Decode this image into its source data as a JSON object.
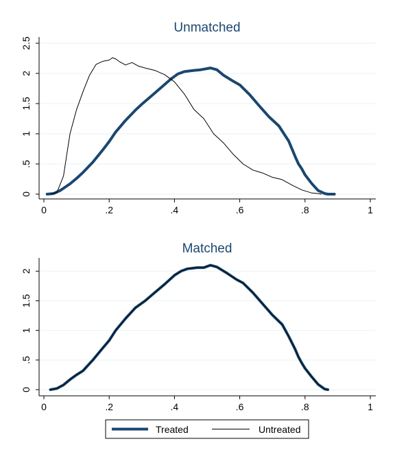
{
  "chart_data": [
    {
      "type": "line",
      "title": "Unmatched",
      "xlabel": "",
      "ylabel": "",
      "xlim": [
        0,
        1
      ],
      "ylim": [
        0,
        2.5
      ],
      "x_ticks": [
        {
          "value": 0,
          "label": "0"
        },
        {
          "value": 0.2,
          "label": ".2"
        },
        {
          "value": 0.4,
          "label": ".4"
        },
        {
          "value": 0.6,
          "label": ".6"
        },
        {
          "value": 0.8,
          "label": ".8"
        },
        {
          "value": 1,
          "label": "1"
        }
      ],
      "y_ticks": [
        {
          "value": 0,
          "label": "0"
        },
        {
          "value": 0.5,
          "label": ".5"
        },
        {
          "value": 1,
          "label": "1"
        },
        {
          "value": 1.5,
          "label": "1.5"
        },
        {
          "value": 2,
          "label": "2"
        },
        {
          "value": 2.5,
          "label": "2.5"
        }
      ],
      "grid": true,
      "series": [
        {
          "name": "Treated",
          "color": "#1a476f",
          "x": [
            0.01,
            0.03,
            0.05,
            0.08,
            0.1,
            0.12,
            0.15,
            0.18,
            0.2,
            0.22,
            0.25,
            0.28,
            0.3,
            0.33,
            0.36,
            0.39,
            0.41,
            0.43,
            0.46,
            0.48,
            0.5,
            0.51,
            0.53,
            0.55,
            0.58,
            0.6,
            0.63,
            0.66,
            0.69,
            0.72,
            0.75,
            0.77,
            0.78,
            0.79,
            0.8,
            0.82,
            0.84,
            0.86,
            0.87,
            0.89
          ],
          "y": [
            0,
            0.01,
            0.06,
            0.17,
            0.26,
            0.36,
            0.53,
            0.73,
            0.87,
            1.03,
            1.22,
            1.39,
            1.49,
            1.63,
            1.77,
            1.91,
            1.99,
            2.03,
            2.05,
            2.06,
            2.08,
            2.09,
            2.06,
            1.97,
            1.87,
            1.81,
            1.65,
            1.46,
            1.28,
            1.13,
            0.88,
            0.62,
            0.5,
            0.42,
            0.32,
            0.18,
            0.06,
            0.01,
            0,
            0
          ]
        },
        {
          "name": "Untreated",
          "color": "#000000",
          "x": [
            0.02,
            0.04,
            0.06,
            0.07,
            0.08,
            0.1,
            0.12,
            0.14,
            0.16,
            0.18,
            0.2,
            0.21,
            0.22,
            0.23,
            0.25,
            0.27,
            0.29,
            0.31,
            0.34,
            0.37,
            0.4,
            0.43,
            0.46,
            0.49,
            0.52,
            0.55,
            0.58,
            0.61,
            0.64,
            0.67,
            0.7,
            0.73,
            0.76,
            0.79,
            0.82,
            0.84,
            0.85
          ],
          "y": [
            0,
            0.03,
            0.3,
            0.65,
            1.0,
            1.4,
            1.7,
            1.97,
            2.15,
            2.2,
            2.22,
            2.26,
            2.24,
            2.2,
            2.14,
            2.18,
            2.12,
            2.09,
            2.05,
            1.98,
            1.86,
            1.66,
            1.4,
            1.25,
            1.0,
            0.85,
            0.66,
            0.5,
            0.4,
            0.35,
            0.28,
            0.24,
            0.15,
            0.07,
            0.02,
            0.01,
            0
          ]
        }
      ]
    },
    {
      "type": "line",
      "title": "Matched",
      "xlabel": "",
      "ylabel": "",
      "xlim": [
        0,
        1
      ],
      "ylim": [
        0,
        2.2
      ],
      "x_ticks": [
        {
          "value": 0,
          "label": "0"
        },
        {
          "value": 0.2,
          "label": ".2"
        },
        {
          "value": 0.4,
          "label": ".4"
        },
        {
          "value": 0.6,
          "label": ".6"
        },
        {
          "value": 0.8,
          "label": ".8"
        },
        {
          "value": 1,
          "label": "1"
        }
      ],
      "y_ticks": [
        {
          "value": 0,
          "label": "0"
        },
        {
          "value": 0.5,
          "label": ".5"
        },
        {
          "value": 1,
          "label": "1"
        },
        {
          "value": 1.5,
          "label": "1.5"
        },
        {
          "value": 2,
          "label": "2"
        }
      ],
      "grid": true,
      "series": [
        {
          "name": "Treated",
          "color": "#1a476f",
          "x": [
            0.02,
            0.04,
            0.06,
            0.08,
            0.1,
            0.12,
            0.15,
            0.18,
            0.2,
            0.22,
            0.25,
            0.28,
            0.31,
            0.34,
            0.37,
            0.4,
            0.42,
            0.44,
            0.47,
            0.49,
            0.51,
            0.53,
            0.56,
            0.59,
            0.61,
            0.64,
            0.67,
            0.7,
            0.73,
            0.75,
            0.77,
            0.78,
            0.79,
            0.8,
            0.82,
            0.84,
            0.86,
            0.87
          ],
          "y": [
            0,
            0.02,
            0.08,
            0.17,
            0.25,
            0.32,
            0.5,
            0.7,
            0.83,
            1.0,
            1.2,
            1.38,
            1.5,
            1.64,
            1.78,
            1.93,
            2.0,
            2.04,
            2.06,
            2.06,
            2.1,
            2.07,
            1.97,
            1.86,
            1.8,
            1.64,
            1.45,
            1.26,
            1.1,
            0.9,
            0.68,
            0.55,
            0.45,
            0.36,
            0.22,
            0.09,
            0.01,
            0
          ]
        },
        {
          "name": "Untreated",
          "color": "#000000",
          "x": [
            0.02,
            0.04,
            0.06,
            0.08,
            0.1,
            0.12,
            0.15,
            0.18,
            0.2,
            0.22,
            0.25,
            0.28,
            0.31,
            0.34,
            0.37,
            0.4,
            0.42,
            0.44,
            0.47,
            0.49,
            0.51,
            0.53,
            0.56,
            0.59,
            0.61,
            0.64,
            0.67,
            0.7,
            0.73,
            0.75,
            0.77,
            0.78,
            0.79,
            0.8,
            0.82,
            0.84,
            0.86,
            0.87
          ],
          "y": [
            0,
            0.02,
            0.08,
            0.17,
            0.25,
            0.32,
            0.5,
            0.7,
            0.83,
            1.0,
            1.2,
            1.38,
            1.5,
            1.64,
            1.78,
            1.93,
            2.0,
            2.04,
            2.06,
            2.06,
            2.1,
            2.07,
            1.97,
            1.86,
            1.8,
            1.64,
            1.45,
            1.26,
            1.1,
            0.9,
            0.68,
            0.55,
            0.45,
            0.36,
            0.22,
            0.09,
            0.01,
            0
          ]
        }
      ]
    }
  ],
  "legend": {
    "placement": "bottom-center",
    "items": [
      {
        "label": "Treated",
        "color": "#1a476f",
        "style": "thick"
      },
      {
        "label": "Untreated",
        "color": "#000000",
        "style": "thin"
      }
    ]
  },
  "colors": {
    "title": "#1a476f",
    "grid": "#eaf2f3",
    "axis": "#000000"
  }
}
